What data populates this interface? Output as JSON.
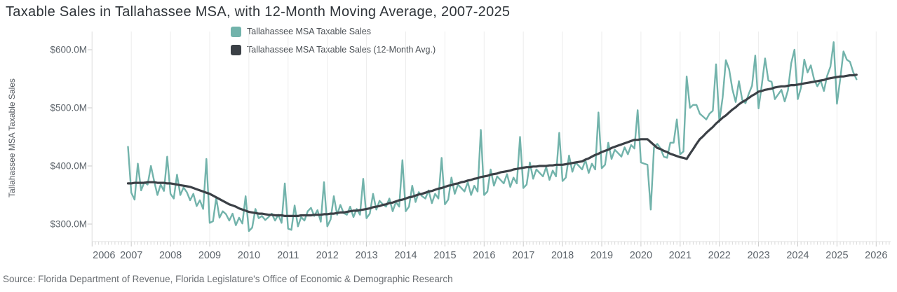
{
  "title": "Taxable Sales in Tallahassee MSA, with 12-Month Moving Average, 2007-2025",
  "source": "Source: Florida Department of Revenue, Florida Legislature's Office of Economic & Demographic Research",
  "legend": [
    {
      "label": "Tallahassee MSA Taxable Sales",
      "color": "#72b3ab"
    },
    {
      "label": "Tallahassee MSA Taxable Sales (12-Month Avg.)",
      "color": "#3b4046"
    }
  ],
  "colors": {
    "background": "#ffffff",
    "gridline": "#ececec",
    "axis_line": "#e2e2e2",
    "minor_tick": "#d9d9d9",
    "major_tick": "#c9c9c9",
    "tick_label": "#5d646b",
    "title_text": "#2f3439",
    "series_monthly": "#72b3ab",
    "series_moving_avg": "#3b4046"
  },
  "chart_data": {
    "type": "line",
    "title": "Taxable Sales in Tallahassee MSA, with 12-Month Moving Average, 2007-2025",
    "xlabel": "",
    "ylabel": "Tallahassee MSA Taxable Sales",
    "unit": "USD millions",
    "x_start": "2006-12",
    "x_interval": "month",
    "x_ticks": [
      2006,
      2007,
      2008,
      2009,
      2010,
      2011,
      2012,
      2013,
      2014,
      2015,
      2016,
      2017,
      2018,
      2019,
      2020,
      2021,
      2022,
      2023,
      2024,
      2025,
      2026
    ],
    "y_ticks": [
      {
        "value": 600,
        "label": "$600.0M"
      },
      {
        "value": 500,
        "label": "$500.0M"
      },
      {
        "value": 400,
        "label": "$400.0M"
      },
      {
        "value": 300,
        "label": "$300.0M"
      }
    ],
    "ylim": [
      255,
      630
    ],
    "grid": "vertical-only",
    "legend_position": "top-center-left",
    "series": [
      {
        "name": "Tallahassee MSA Taxable Sales",
        "color": "#72b3ab",
        "width": 2.4,
        "values": [
          433,
          354,
          342,
          404,
          358,
          372,
          368,
          400,
          374,
          350,
          368,
          357,
          416,
          352,
          344,
          385,
          350,
          363,
          355,
          341,
          352,
          331,
          341,
          326,
          412,
          302,
          305,
          345,
          311,
          322,
          317,
          306,
          318,
          298,
          311,
          301,
          348,
          288,
          294,
          326,
          310,
          314,
          307,
          312,
          318,
          306,
          316,
          302,
          370,
          292,
          290,
          332,
          296,
          312,
          306,
          322,
          328,
          314,
          324,
          304,
          372,
          296,
          308,
          348,
          316,
          333,
          319,
          316,
          330,
          312,
          326,
          316,
          378,
          310,
          318,
          352,
          325,
          340,
          334,
          330,
          344,
          322,
          338,
          330,
          410,
          322,
          330,
          366,
          338,
          355,
          348,
          344,
          358,
          336,
          352,
          344,
          414,
          334,
          342,
          380,
          352,
          368,
          362,
          356,
          372,
          350,
          366,
          356,
          462,
          350,
          356,
          394,
          366,
          382,
          376,
          370,
          386,
          364,
          380,
          370,
          450,
          362,
          368,
          406,
          378,
          394,
          388,
          382,
          398,
          376,
          392,
          382,
          457,
          374,
          380,
          418,
          390,
          406,
          400,
          394,
          410,
          388,
          404,
          394,
          492,
          396,
          402,
          440,
          412,
          428,
          422,
          416,
          432,
          420,
          436,
          430,
          496,
          406,
          404,
          402,
          325,
          432,
          438,
          430,
          416,
          414,
          440,
          440,
          480,
          420,
          425,
          554,
          500,
          505,
          505,
          490,
          485,
          480,
          490,
          495,
          575,
          476,
          518,
          582,
          566,
          532,
          510,
          546,
          514,
          508,
          524,
          538,
          590,
          499,
          540,
          585,
          547,
          545,
          515,
          523,
          531,
          511,
          530,
          577,
          600,
          515,
          535,
          583,
          561,
          573,
          549,
          537,
          547,
          529,
          555,
          571,
          613,
          507,
          550,
          597,
          583,
          579,
          561,
          549
        ]
      },
      {
        "name": "Tallahassee MSA Taxable Sales (12-Month Avg.)",
        "color": "#3b4046",
        "width": 3.2,
        "values": [
          370,
          370,
          371,
          371,
          371,
          371,
          372,
          372,
          372,
          371,
          371,
          371,
          370,
          370,
          369,
          368,
          367,
          366,
          365,
          364,
          362,
          360,
          358,
          356,
          354,
          352,
          349,
          346,
          343,
          340,
          337,
          334,
          332,
          330,
          327,
          325,
          323,
          321,
          320,
          319,
          318,
          318,
          317,
          316,
          316,
          315,
          315,
          315,
          314,
          314,
          314,
          314,
          314,
          315,
          315,
          315,
          315,
          316,
          316,
          316,
          317,
          317,
          318,
          318,
          319,
          320,
          320,
          321,
          322,
          323,
          323,
          324,
          325,
          326,
          327,
          329,
          330,
          331,
          333,
          334,
          336,
          337,
          339,
          341,
          342,
          344,
          346,
          347,
          349,
          351,
          352,
          354,
          356,
          357,
          359,
          361,
          362,
          364,
          366,
          367,
          369,
          370,
          372,
          373,
          375,
          376,
          378,
          379,
          381,
          382,
          383,
          385,
          386,
          387,
          389,
          390,
          391,
          392,
          394,
          395,
          396,
          397,
          398,
          398,
          399,
          399,
          400,
          400,
          400,
          401,
          401,
          402,
          402,
          402,
          403,
          404,
          405,
          406,
          407,
          408,
          411,
          413,
          416,
          419,
          421,
          424,
          426,
          428,
          431,
          433,
          435,
          437,
          439,
          441,
          443,
          445,
          445,
          446,
          446,
          446,
          441,
          436,
          431,
          429,
          426,
          424,
          421,
          419,
          417,
          415,
          414,
          412,
          421,
          429,
          438,
          446,
          451,
          457,
          462,
          467,
          473,
          478,
          483,
          487,
          492,
          497,
          501,
          506,
          510,
          513,
          517,
          521,
          524,
          528,
          529,
          531,
          532,
          533,
          535,
          536,
          537,
          537,
          538,
          539,
          539,
          540,
          541,
          542,
          543,
          544,
          545,
          546,
          547,
          548,
          550,
          551,
          552,
          553,
          554,
          554,
          555,
          556,
          556,
          557
        ]
      }
    ]
  }
}
